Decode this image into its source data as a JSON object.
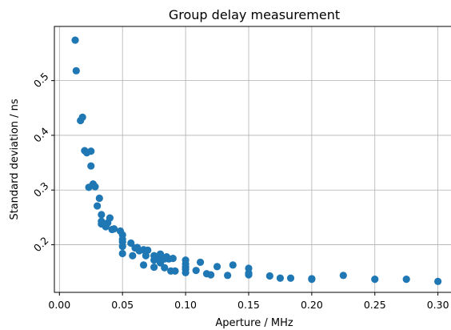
{
  "chart_data": {
    "type": "scatter",
    "title": "Group delay measurement",
    "xlabel": "Aperture / MHz",
    "ylabel": "Standard deviation / ns",
    "xlim": [
      -0.004,
      0.311
    ],
    "ylim": [
      0.113,
      0.599
    ],
    "xticks": [
      0.0,
      0.05,
      0.1,
      0.15,
      0.2,
      0.25,
      0.3
    ],
    "xtick_labels": [
      "0.00",
      "0.05",
      "0.10",
      "0.15",
      "0.20",
      "0.25",
      "0.30"
    ],
    "yticks": [
      0.2,
      0.3,
      0.4,
      0.5
    ],
    "ytick_labels": [
      "0.2",
      "0.3",
      "0.4",
      "0.5"
    ],
    "grid": true,
    "marker_color": "#1f77b4",
    "series": [
      {
        "x": [
          0.0125,
          0.0133,
          0.0167,
          0.0183,
          0.02,
          0.0217,
          0.025,
          0.0233,
          0.025,
          0.0267,
          0.0283,
          0.03,
          0.0317,
          0.0333,
          0.0333,
          0.0367,
          0.0383,
          0.04,
          0.0417,
          0.0433,
          0.0483,
          0.05,
          0.05,
          0.05,
          0.05,
          0.0567,
          0.06,
          0.0617,
          0.0633,
          0.0667,
          0.0683,
          0.0667,
          0.07,
          0.075,
          0.0783,
          0.08,
          0.0817,
          0.0833,
          0.085,
          0.0867,
          0.09,
          0.075,
          0.08,
          0.0833,
          0.0883,
          0.0917,
          0.1,
          0.1,
          0.1,
          0.1,
          0.1,
          0.1083,
          0.1117,
          0.1167,
          0.12,
          0.125,
          0.1333,
          0.1375,
          0.15,
          0.15,
          0.15,
          0.1667,
          0.175,
          0.1833,
          0.2,
          0.2,
          0.225,
          0.25,
          0.275,
          0.3,
          0.05,
          0.058,
          0.0685,
          0.075,
          0.0333,
          0.037
        ],
        "y": [
          0.574,
          0.518,
          0.427,
          0.433,
          0.372,
          0.368,
          0.371,
          0.305,
          0.344,
          0.311,
          0.306,
          0.271,
          0.285,
          0.255,
          0.243,
          0.233,
          0.24,
          0.249,
          0.228,
          0.229,
          0.225,
          0.218,
          0.205,
          0.197,
          0.184,
          0.203,
          0.194,
          0.195,
          0.189,
          0.191,
          0.188,
          0.163,
          0.19,
          0.172,
          0.177,
          0.183,
          0.175,
          0.158,
          0.178,
          0.174,
          0.175,
          0.159,
          0.167,
          0.174,
          0.152,
          0.152,
          0.172,
          0.165,
          0.159,
          0.155,
          0.149,
          0.153,
          0.168,
          0.147,
          0.145,
          0.16,
          0.144,
          0.163,
          0.145,
          0.148,
          0.157,
          0.143,
          0.139,
          0.139,
          0.138,
          0.137,
          0.144,
          0.137,
          0.137,
          0.133,
          0.21,
          0.18,
          0.18,
          0.18,
          0.238,
          0.237
        ]
      }
    ]
  }
}
